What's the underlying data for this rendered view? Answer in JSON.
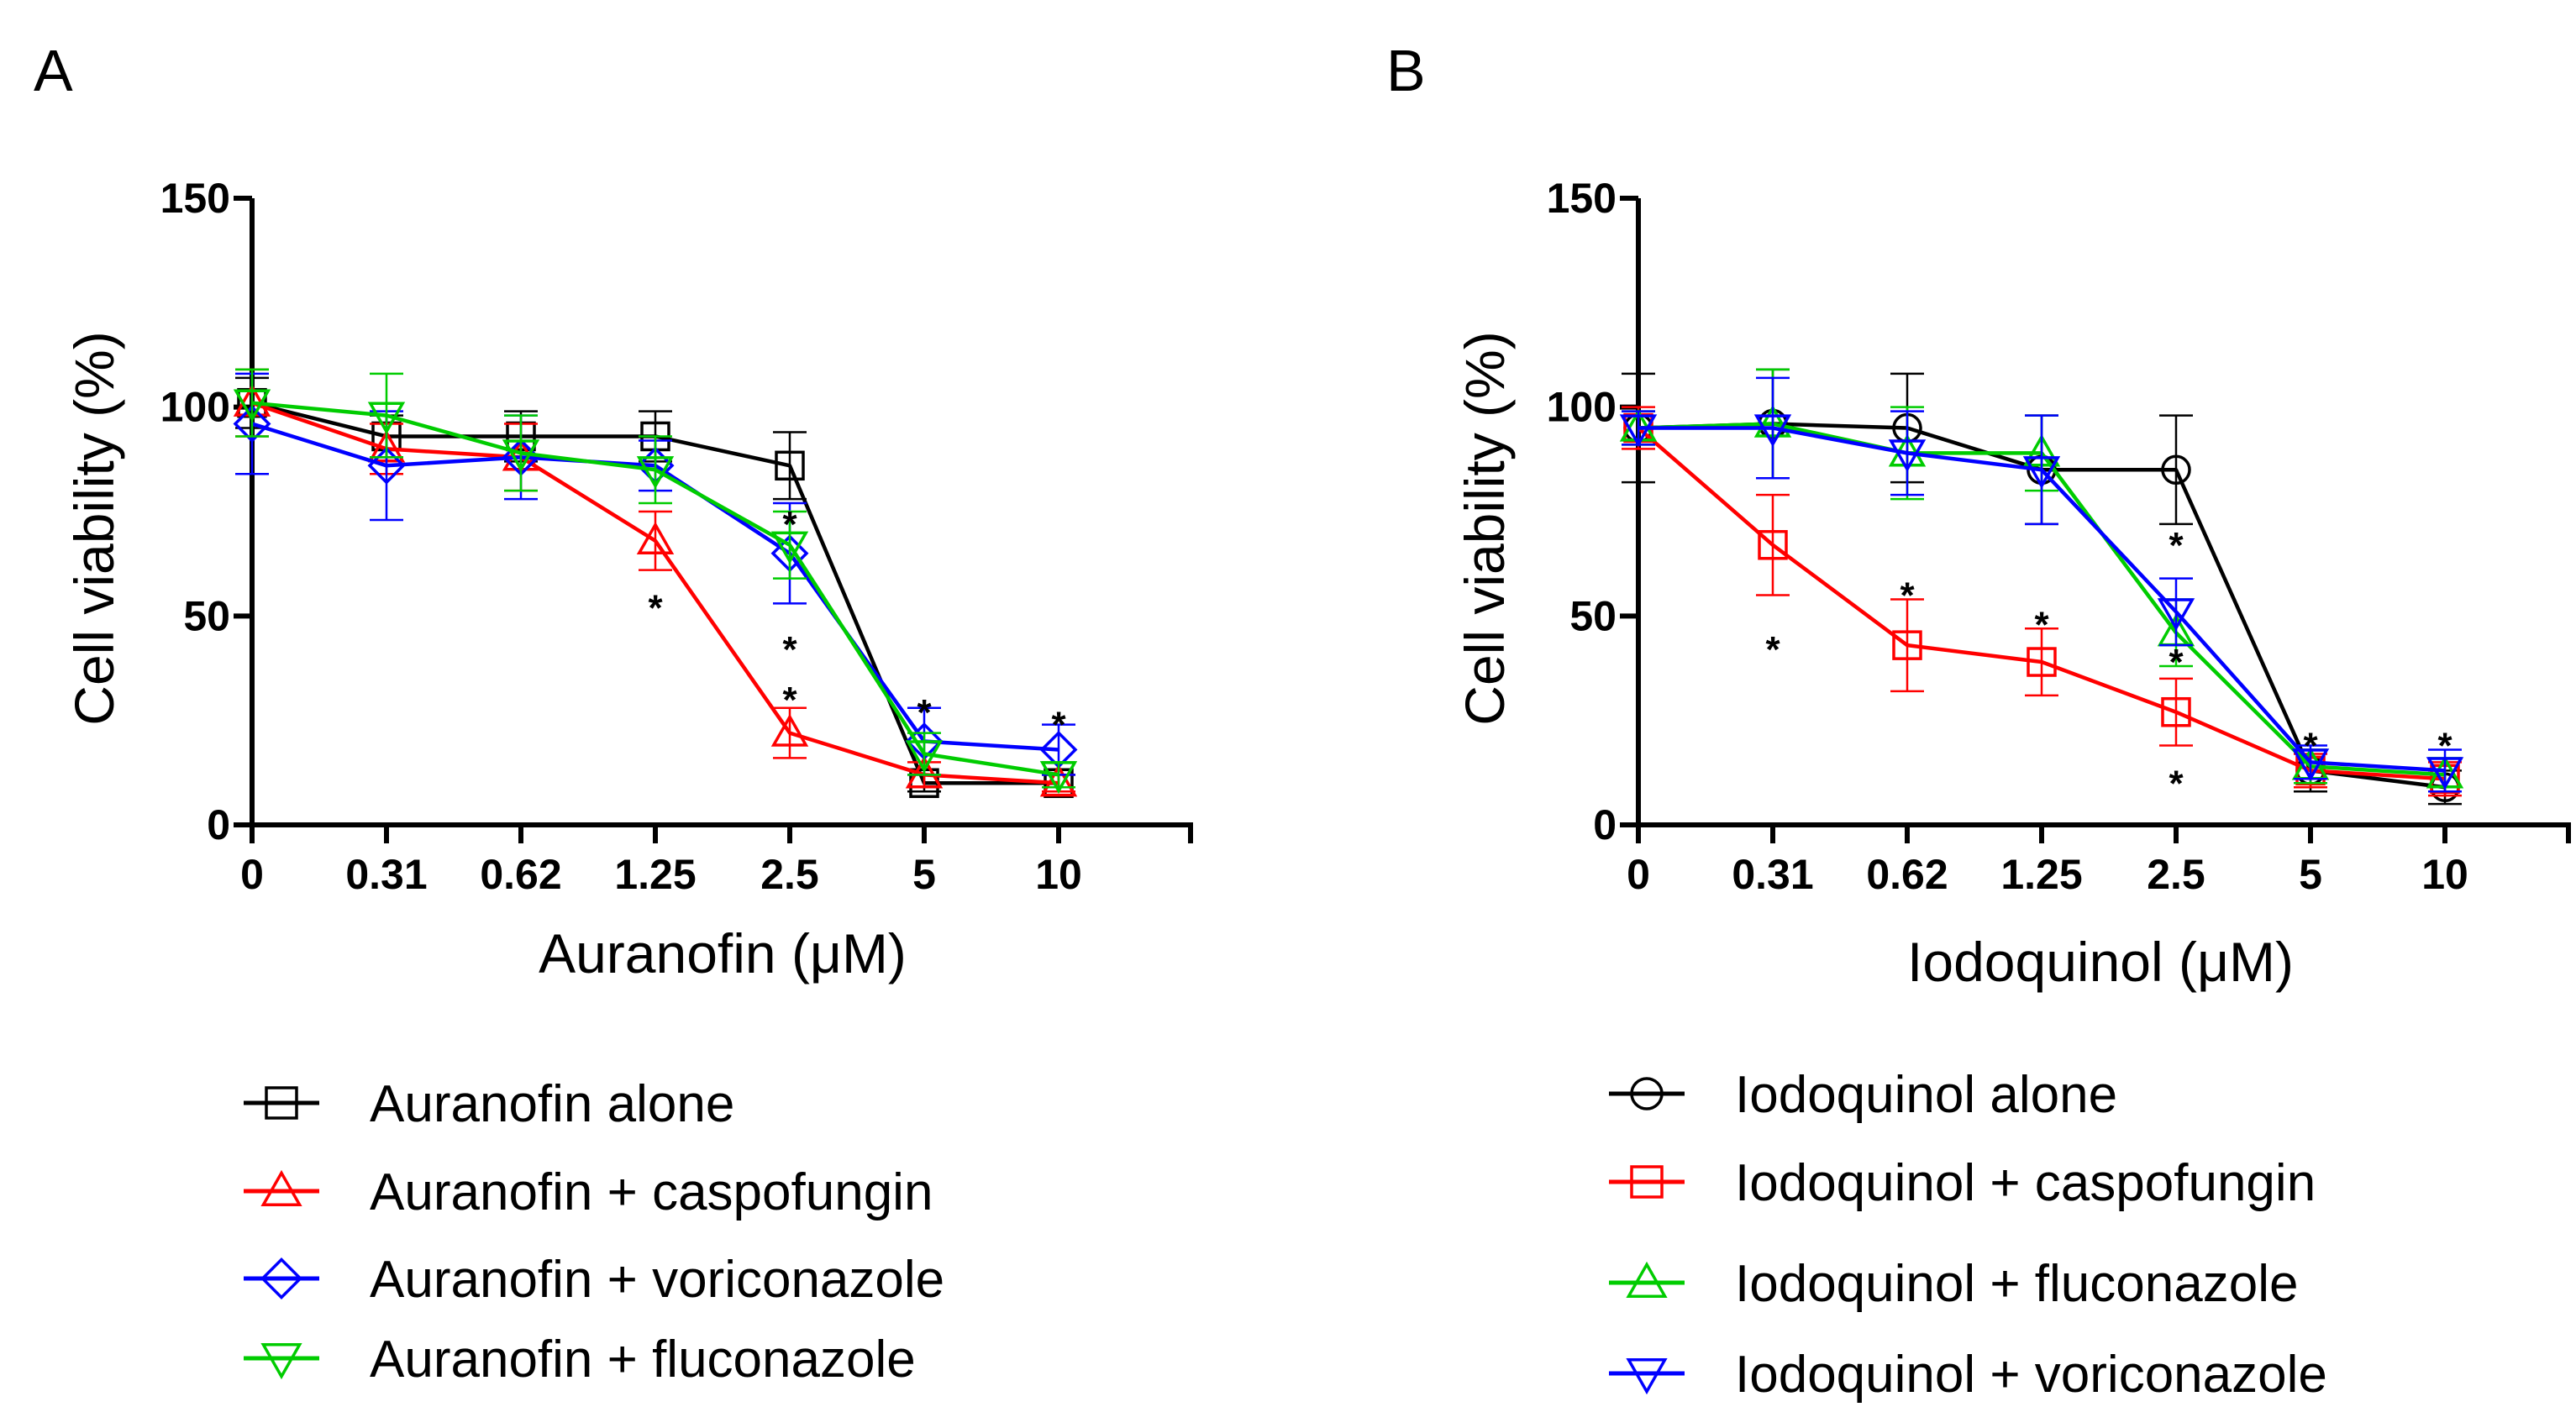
{
  "chart_data": [
    {
      "panel": "A",
      "type": "line",
      "xlabel": "Auranofin (μM)",
      "ylabel": "Cell viability (%)",
      "categories": [
        "0",
        "0.31",
        "0.62",
        "1.25",
        "2.5",
        "5",
        "10"
      ],
      "ylim": [
        0,
        150
      ],
      "yticks": [
        "0",
        "50",
        "100",
        "150"
      ],
      "series": [
        {
          "name": "Auranofin alone",
          "color": "#000000",
          "marker": "square",
          "values": [
            101,
            93,
            93,
            93,
            86,
            10,
            10
          ],
          "errors": [
            6,
            5,
            6,
            6,
            8,
            2,
            2
          ]
        },
        {
          "name": "Auranofin + caspofungin",
          "color": "#ff0000",
          "marker": "triangle-up",
          "values": [
            101,
            90,
            88,
            68,
            22,
            12,
            10
          ],
          "errors": [
            8,
            6,
            8,
            7,
            6,
            3,
            2
          ]
        },
        {
          "name": "Auranofin + voriconazole",
          "color": "#0000ff",
          "marker": "diamond",
          "values": [
            96,
            86,
            88,
            86,
            65,
            20,
            18
          ],
          "errors": [
            12,
            13,
            10,
            6,
            12,
            8,
            6
          ]
        },
        {
          "name": "Auranofin + fluconazole",
          "color": "#00cc00",
          "marker": "triangle-down",
          "values": [
            101,
            98,
            89,
            85,
            67,
            17,
            12
          ],
          "errors": [
            8,
            10,
            9,
            8,
            8,
            5,
            3
          ]
        }
      ],
      "stars": [
        {
          "x": "1.25",
          "y": 55
        },
        {
          "x": "2.5",
          "y": 75
        },
        {
          "x": "2.5",
          "y": 45
        },
        {
          "x": "2.5",
          "y": 33
        },
        {
          "x": "5",
          "y": 30
        },
        {
          "x": "10",
          "y": 27
        }
      ]
    },
    {
      "panel": "B",
      "type": "line",
      "xlabel": "Iodoquinol (μM)",
      "ylabel": "Cell viability (%)",
      "categories": [
        "0",
        "0.31",
        "0.62",
        "1.25",
        "2.5",
        "5",
        "10"
      ],
      "ylim": [
        0,
        150
      ],
      "yticks": [
        "0",
        "50",
        "100",
        "150"
      ],
      "series": [
        {
          "name": "Iodoquinol alone",
          "color": "#000000",
          "marker": "circle",
          "values": [
            95,
            96,
            95,
            85,
            85,
            13,
            9
          ],
          "errors": [
            13,
            13,
            13,
            13,
            13,
            5,
            4
          ]
        },
        {
          "name": "Iodoquinol + caspofungin",
          "color": "#ff0000",
          "marker": "square",
          "values": [
            95,
            67,
            43,
            39,
            27,
            13,
            11
          ],
          "errors": [
            5,
            12,
            11,
            8,
            8,
            4,
            4
          ]
        },
        {
          "name": "Iodoquinol + fluconazole",
          "color": "#00cc00",
          "marker": "triangle-up",
          "values": [
            95,
            96,
            89,
            89,
            46,
            14,
            12
          ],
          "errors": [
            4,
            13,
            11,
            9,
            8,
            4,
            4
          ]
        },
        {
          "name": "Iodoquinol + voriconazole",
          "color": "#0000ff",
          "marker": "triangle-down",
          "values": [
            95,
            95,
            89,
            85,
            51,
            15,
            13
          ],
          "errors": [
            4,
            12,
            10,
            13,
            8,
            4,
            5
          ]
        }
      ],
      "stars": [
        {
          "x": "0.31",
          "y": 45
        },
        {
          "x": "0.62",
          "y": 58
        },
        {
          "x": "1.25",
          "y": 51
        },
        {
          "x": "2.5",
          "y": 70
        },
        {
          "x": "2.5",
          "y": 42
        },
        {
          "x": "2.5",
          "y": 13
        },
        {
          "x": "5",
          "y": 22
        },
        {
          "x": "10",
          "y": 22
        }
      ]
    }
  ],
  "star_symbol": "*"
}
